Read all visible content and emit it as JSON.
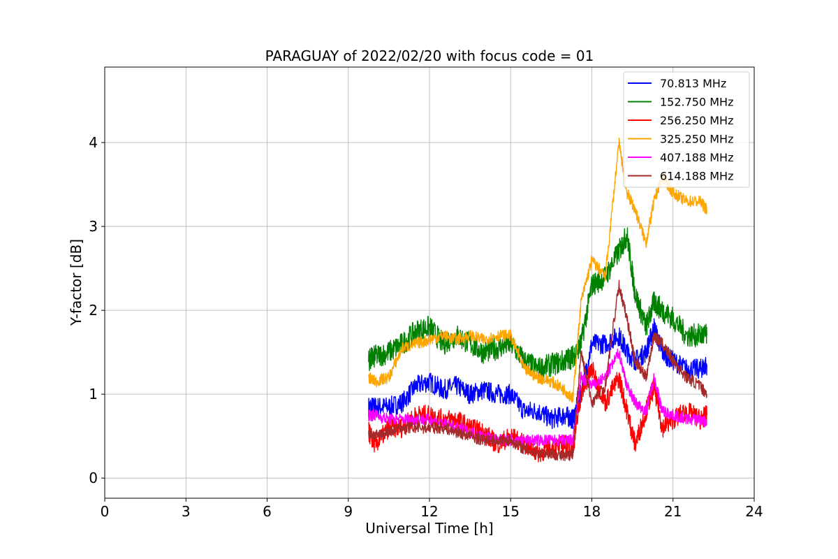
{
  "chart_data": {
    "type": "line",
    "title": "PARAGUAY of 2022/02/20 with focus code = 01",
    "xlabel": "Universal Time [h]",
    "ylabel": "Y-factor [dB]",
    "xlim": [
      0,
      24
    ],
    "ylim": [
      -0.24,
      4.9
    ],
    "xticks": [
      0,
      3,
      6,
      9,
      12,
      15,
      18,
      21,
      24
    ],
    "xtick_labels": [
      "0",
      "3",
      "6",
      "9",
      "12",
      "15",
      "18",
      "21",
      "24"
    ],
    "yticks": [
      0,
      1,
      2,
      3,
      4
    ],
    "ytick_labels": [
      "0",
      "1",
      "2",
      "3",
      "4"
    ],
    "grid": true,
    "legend_position": "top-right",
    "x": [
      9.75,
      10.0,
      10.5,
      11.0,
      11.5,
      12.0,
      12.5,
      13.0,
      13.5,
      14.0,
      14.5,
      15.0,
      15.5,
      16.0,
      16.5,
      17.0,
      17.3,
      17.6,
      18.0,
      18.5,
      19.0,
      19.3,
      19.6,
      20.0,
      20.3,
      20.6,
      21.0,
      21.5,
      22.0,
      22.25
    ],
    "series": [
      {
        "name": "  70.813 MHz",
        "color": "#0000ff",
        "values": [
          0.85,
          0.85,
          0.85,
          0.9,
          1.1,
          1.15,
          1.05,
          1.1,
          1.0,
          1.05,
          1.0,
          1.0,
          0.8,
          0.8,
          0.7,
          0.75,
          0.7,
          1.0,
          1.6,
          1.6,
          1.7,
          1.5,
          1.4,
          1.5,
          1.8,
          1.5,
          1.4,
          1.3,
          1.3,
          1.35
        ]
      },
      {
        "name": "152.750 MHz",
        "color": "#008000",
        "values": [
          1.4,
          1.45,
          1.5,
          1.6,
          1.75,
          1.8,
          1.6,
          1.7,
          1.6,
          1.5,
          1.55,
          1.6,
          1.4,
          1.3,
          1.35,
          1.4,
          1.45,
          1.6,
          2.3,
          2.4,
          2.7,
          2.9,
          2.2,
          1.8,
          2.1,
          2.0,
          1.9,
          1.7,
          1.7,
          1.7
        ]
      },
      {
        "name": "256.250 MHz",
        "color": "#ff0000",
        "values": [
          0.55,
          0.4,
          0.6,
          0.6,
          0.75,
          0.75,
          0.7,
          0.7,
          0.6,
          0.55,
          0.4,
          0.5,
          0.4,
          0.3,
          0.35,
          0.4,
          0.35,
          1.0,
          1.3,
          0.9,
          1.2,
          0.8,
          0.4,
          0.8,
          1.1,
          0.6,
          0.7,
          0.8,
          0.7,
          0.75
        ]
      },
      {
        "name": "325.250 MHz",
        "color": "#ffa500",
        "values": [
          1.2,
          1.15,
          1.2,
          1.55,
          1.6,
          1.65,
          1.7,
          1.65,
          1.7,
          1.65,
          1.7,
          1.7,
          1.3,
          1.2,
          1.15,
          1.05,
          0.95,
          2.1,
          2.6,
          2.4,
          4.0,
          3.4,
          3.2,
          2.8,
          3.3,
          3.6,
          3.4,
          3.3,
          3.3,
          3.2
        ]
      },
      {
        "name": "407.188 MHz",
        "color": "#ff00ff",
        "values": [
          0.75,
          0.75,
          0.7,
          0.7,
          0.7,
          0.7,
          0.65,
          0.6,
          0.55,
          0.5,
          0.45,
          0.45,
          0.45,
          0.45,
          0.45,
          0.45,
          0.45,
          1.2,
          1.1,
          1.2,
          1.5,
          1.1,
          0.9,
          0.8,
          1.2,
          0.8,
          0.75,
          0.7,
          0.7,
          0.65
        ]
      },
      {
        "name": "614.188 MHz",
        "color": "#a52a2a",
        "values": [
          0.55,
          0.5,
          0.55,
          0.6,
          0.6,
          0.6,
          0.6,
          0.55,
          0.5,
          0.45,
          0.45,
          0.45,
          0.35,
          0.3,
          0.3,
          0.25,
          0.3,
          1.5,
          0.9,
          1.1,
          2.3,
          1.9,
          1.4,
          1.2,
          1.7,
          1.6,
          1.4,
          1.2,
          1.1,
          1.0
        ]
      }
    ]
  }
}
